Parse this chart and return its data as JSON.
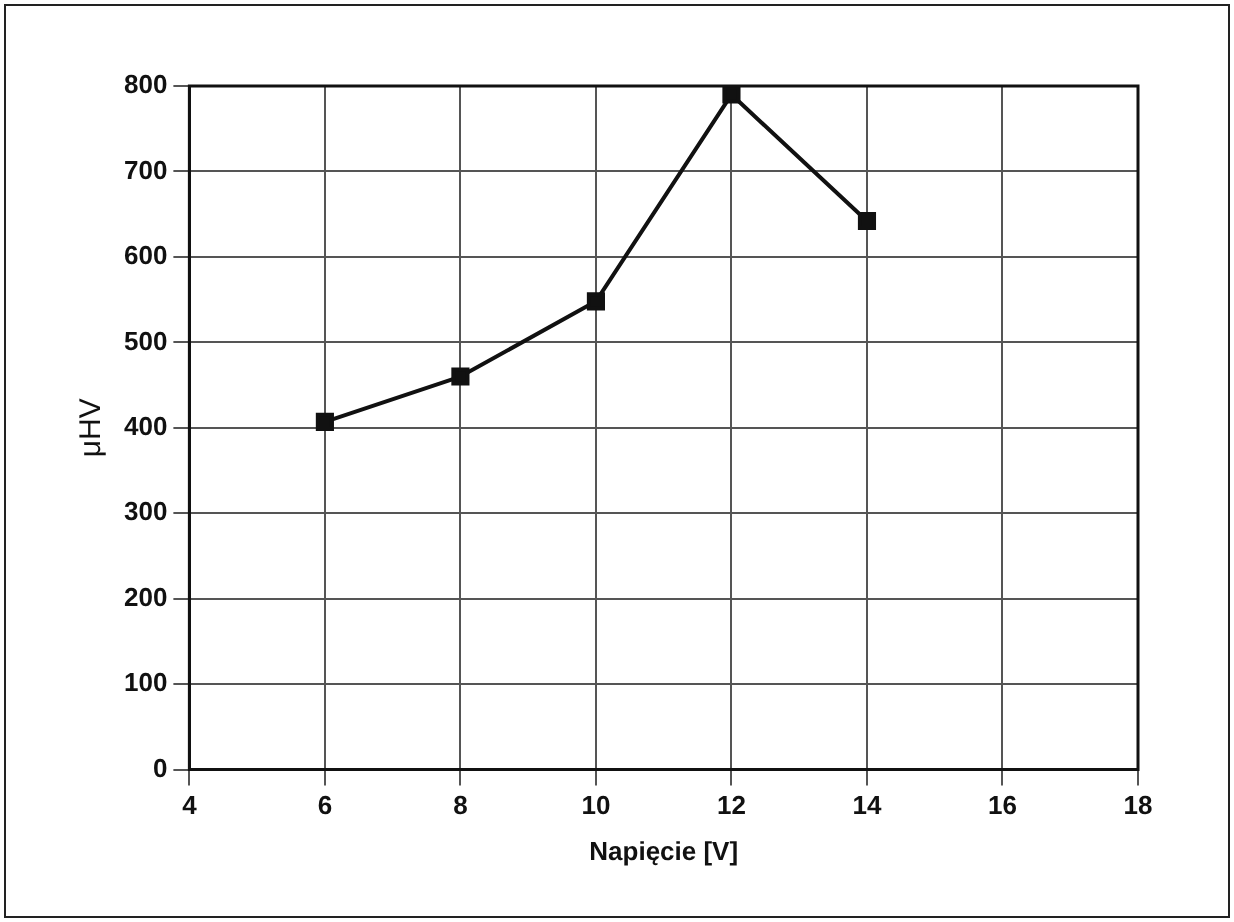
{
  "chart_data": {
    "type": "line",
    "xlabel": "Napięcie [V]",
    "ylabel": "μHV",
    "x": [
      6,
      8,
      10,
      12,
      14
    ],
    "series": [
      {
        "color": "#111111",
        "values": [
          407,
          460,
          548,
          790,
          642
        ]
      }
    ],
    "xlim": [
      4,
      18
    ],
    "xticks": [
      4,
      6,
      8,
      10,
      12,
      14,
      16,
      18
    ],
    "ylim": [
      0,
      800
    ],
    "yticks": [
      0,
      100,
      200,
      300,
      400,
      500,
      600,
      700,
      800
    ],
    "grid": true,
    "legend": false,
    "marker": "square",
    "line_style": "solid"
  }
}
